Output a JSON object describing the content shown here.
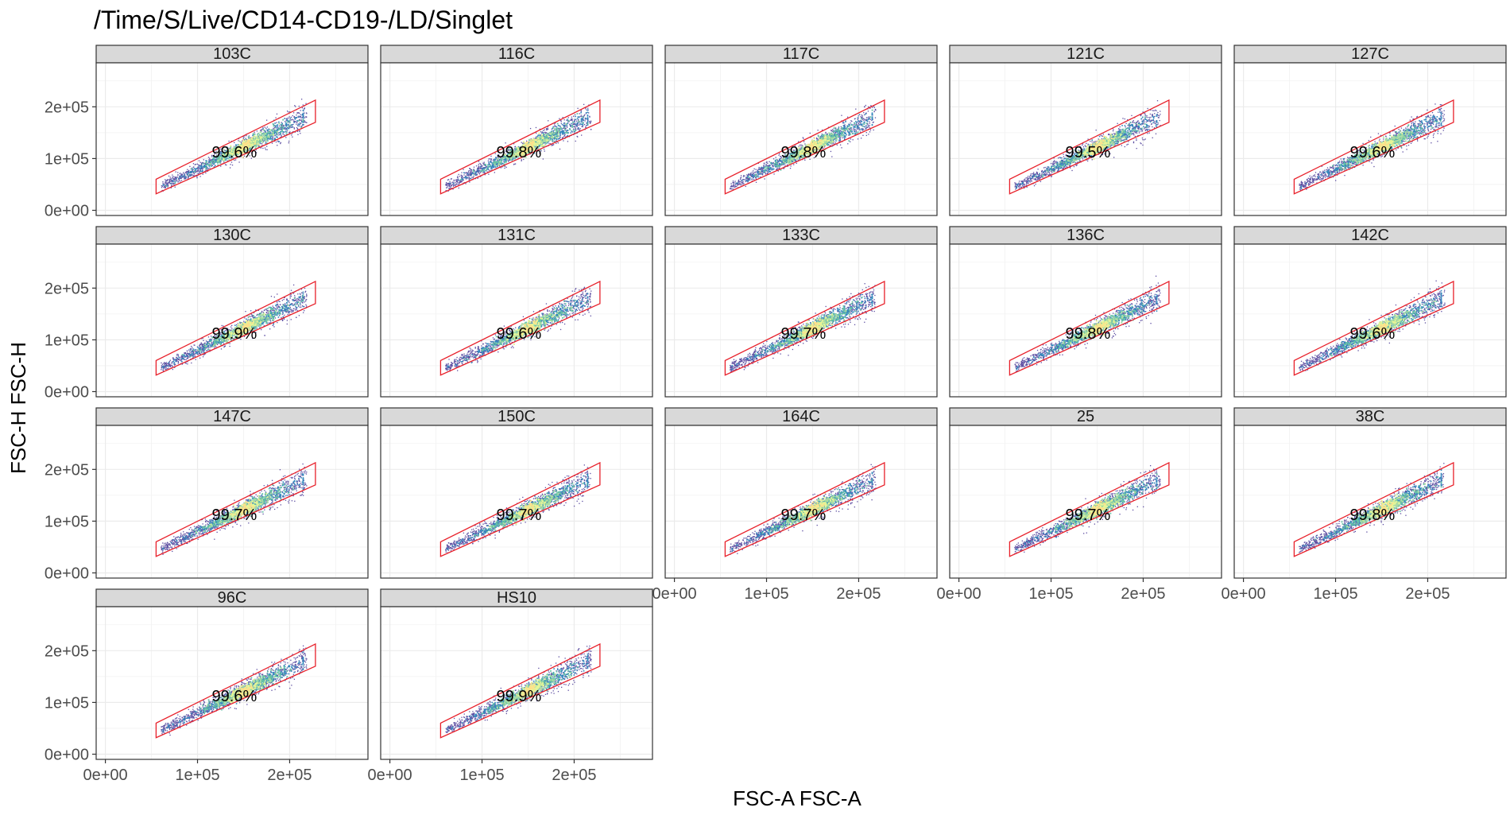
{
  "chart_data": {
    "type": "scatter",
    "title": "/Time/S/Live/CD14-CD19-/LD/Singlet",
    "xlabel": "FSC-A FSC-A",
    "ylabel": "FSC-H FSC-H",
    "x_ticks": [
      "0e+00",
      "1e+05",
      "2e+05"
    ],
    "y_ticks": [
      "0e+00",
      "1e+05",
      "2e+05"
    ],
    "xlim": [
      -10000,
      285000
    ],
    "ylim": [
      -10000,
      285000
    ],
    "grid": true,
    "gate": {
      "shape": "polygon",
      "color": "#e8202a",
      "vertices": [
        [
          55000,
          32000
        ],
        [
          55000,
          60000
        ],
        [
          228000,
          213000
        ],
        [
          228000,
          170000
        ]
      ]
    },
    "density_palette": [
      "#5e4fa2",
      "#3288bd",
      "#66c2a5",
      "#abdda4",
      "#e6f598",
      "#fee08b"
    ],
    "panels": [
      {
        "label": "103C",
        "percent": "99.6%"
      },
      {
        "label": "116C",
        "percent": "99.8%"
      },
      {
        "label": "117C",
        "percent": "99.8%"
      },
      {
        "label": "121C",
        "percent": "99.5%"
      },
      {
        "label": "127C",
        "percent": "99.6%"
      },
      {
        "label": "130C",
        "percent": "99.9%"
      },
      {
        "label": "131C",
        "percent": "99.6%"
      },
      {
        "label": "133C",
        "percent": "99.7%"
      },
      {
        "label": "136C",
        "percent": "99.8%"
      },
      {
        "label": "142C",
        "percent": "99.6%"
      },
      {
        "label": "147C",
        "percent": "99.7%"
      },
      {
        "label": "150C",
        "percent": "99.7%"
      },
      {
        "label": "164C",
        "percent": "99.7%"
      },
      {
        "label": "25",
        "percent": "99.7%"
      },
      {
        "label": "38C",
        "percent": "99.8%"
      },
      {
        "label": "96C",
        "percent": "99.6%"
      },
      {
        "label": "HS10",
        "percent": "99.9%"
      }
    ]
  }
}
